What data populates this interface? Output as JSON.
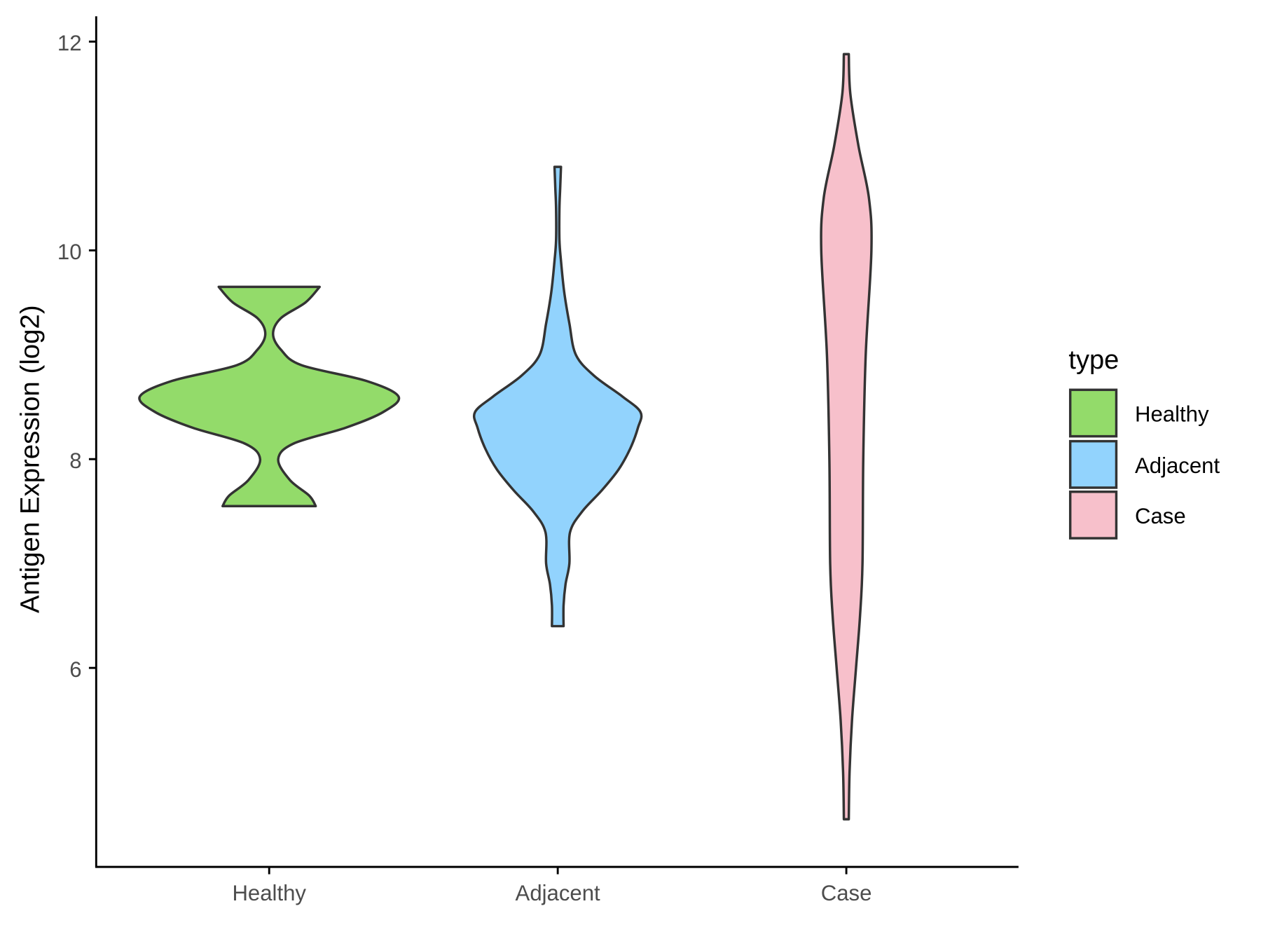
{
  "chart_data": {
    "type": "violin",
    "title": "",
    "xlabel": "",
    "ylabel": "Antigen Expression (log2)",
    "ylim": [
      4.3,
      12.25
    ],
    "yticks": [
      6,
      8,
      10,
      12
    ],
    "ytick_labels": [
      "6",
      "8",
      "10",
      "12"
    ],
    "categories": [
      "Healthy",
      "Adjacent",
      "Case"
    ],
    "grid": false,
    "legend": {
      "title": "type",
      "position": "right",
      "entries": [
        "Healthy",
        "Adjacent",
        "Case"
      ]
    },
    "series": [
      {
        "name": "Healthy",
        "color": "#93DB6A",
        "range": [
          7.55,
          9.65
        ],
        "density_profile": [
          [
            7.55,
            0.36
          ],
          [
            7.65,
            0.31
          ],
          [
            7.8,
            0.16
          ],
          [
            8.0,
            0.07
          ],
          [
            8.15,
            0.19
          ],
          [
            8.3,
            0.59
          ],
          [
            8.45,
            0.88
          ],
          [
            8.6,
            1.0
          ],
          [
            8.75,
            0.75
          ],
          [
            8.9,
            0.25
          ],
          [
            9.05,
            0.09
          ],
          [
            9.2,
            0.03
          ],
          [
            9.35,
            0.09
          ],
          [
            9.5,
            0.28
          ],
          [
            9.65,
            0.39
          ]
        ]
      },
      {
        "name": "Adjacent",
        "color": "#92D3FD",
        "range": [
          6.4,
          10.8
        ],
        "density_profile": [
          [
            6.4,
            0.045
          ],
          [
            6.6,
            0.045
          ],
          [
            6.8,
            0.06
          ],
          [
            7.0,
            0.09
          ],
          [
            7.3,
            0.095
          ],
          [
            7.5,
            0.19
          ],
          [
            7.7,
            0.34
          ],
          [
            7.9,
            0.47
          ],
          [
            8.1,
            0.56
          ],
          [
            8.3,
            0.62
          ],
          [
            8.45,
            0.64
          ],
          [
            8.6,
            0.5
          ],
          [
            8.8,
            0.28
          ],
          [
            9.0,
            0.14
          ],
          [
            9.3,
            0.09
          ],
          [
            9.6,
            0.05
          ],
          [
            9.9,
            0.025
          ],
          [
            10.1,
            0.013
          ],
          [
            10.4,
            0.013
          ],
          [
            10.6,
            0.019
          ],
          [
            10.8,
            0.025
          ]
        ]
      },
      {
        "name": "Case",
        "color": "#F7C0CB",
        "range": [
          4.55,
          11.88
        ],
        "density_profile": [
          [
            4.55,
            0.019
          ],
          [
            5.0,
            0.025
          ],
          [
            5.5,
            0.044
          ],
          [
            6.0,
            0.075
          ],
          [
            6.5,
            0.106
          ],
          [
            7.0,
            0.125
          ],
          [
            8.0,
            0.131
          ],
          [
            9.0,
            0.15
          ],
          [
            10.0,
            0.194
          ],
          [
            10.5,
            0.175
          ],
          [
            11.0,
            0.094
          ],
          [
            11.5,
            0.031
          ],
          [
            11.88,
            0.019
          ]
        ]
      }
    ]
  }
}
